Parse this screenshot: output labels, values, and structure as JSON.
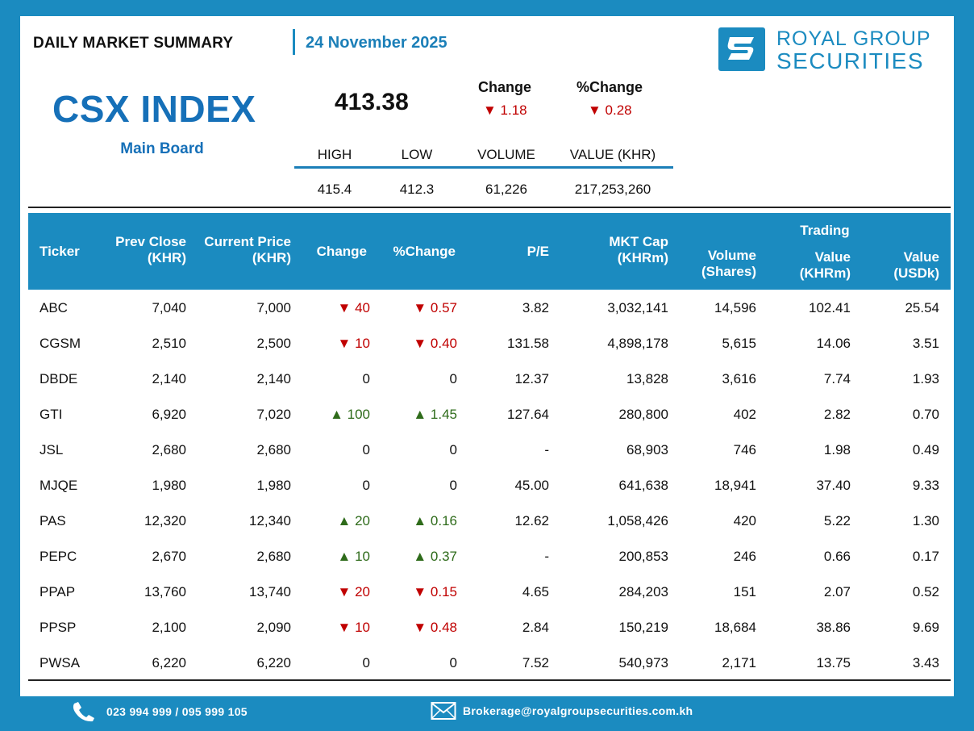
{
  "header": {
    "summary_title": "DAILY MARKET SUMMARY",
    "date": "24 November 2025",
    "logo_line1": "ROYAL GROUP",
    "logo_line2": "SECURITIES"
  },
  "index": {
    "name": "CSX INDEX",
    "board": "Main Board",
    "value": "413.38",
    "change_label": "Change",
    "change_value": "▼ 1.18",
    "pct_change_label": "%Change",
    "pct_change_value": "▼ 0.28"
  },
  "stats": {
    "labels": [
      "HIGH",
      "LOW",
      "VOLUME",
      "VALUE (KHR)"
    ],
    "values": [
      "415.4",
      "412.3",
      "61,226",
      "217,253,260"
    ]
  },
  "table": {
    "headers": {
      "ticker": "Ticker",
      "prev_close_1": "Prev Close",
      "prev_close_2": "(KHR)",
      "current_price_1": "Current Price",
      "current_price_2": "(KHR)",
      "change": "Change",
      "pct_change": "%Change",
      "pe": "P/E",
      "mkt_cap_1": "MKT Cap",
      "mkt_cap_2": "(KHRm)",
      "volume_1": "Volume",
      "volume_2": "(Shares)",
      "trading": "Trading",
      "value_khr_1": "Value",
      "value_khr_2": "(KHRm)",
      "value_usd_1": "Value",
      "value_usd_2": "(USDk)"
    },
    "rows": [
      {
        "ticker": "ABC",
        "prev": "7,040",
        "cur": "7,000",
        "chg": "▼ 40",
        "pct": "▼ 0.57",
        "dir": "down",
        "pe": "3.82",
        "cap": "3,032,141",
        "vol": "14,596",
        "vkhr": "102.41",
        "vusd": "25.54"
      },
      {
        "ticker": "CGSM",
        "prev": "2,510",
        "cur": "2,500",
        "chg": "▼ 10",
        "pct": "▼ 0.40",
        "dir": "down",
        "pe": "131.58",
        "cap": "4,898,178",
        "vol": "5,615",
        "vkhr": "14.06",
        "vusd": "3.51"
      },
      {
        "ticker": "DBDE",
        "prev": "2,140",
        "cur": "2,140",
        "chg": "0",
        "pct": "0",
        "dir": "flat",
        "pe": "12.37",
        "cap": "13,828",
        "vol": "3,616",
        "vkhr": "7.74",
        "vusd": "1.93"
      },
      {
        "ticker": "GTI",
        "prev": "6,920",
        "cur": "7,020",
        "chg": "▲ 100",
        "pct": "▲ 1.45",
        "dir": "up",
        "pe": "127.64",
        "cap": "280,800",
        "vol": "402",
        "vkhr": "2.82",
        "vusd": "0.70"
      },
      {
        "ticker": "JSL",
        "prev": "2,680",
        "cur": "2,680",
        "chg": "0",
        "pct": "0",
        "dir": "flat",
        "pe": "-",
        "cap": "68,903",
        "vol": "746",
        "vkhr": "1.98",
        "vusd": "0.49"
      },
      {
        "ticker": "MJQE",
        "prev": "1,980",
        "cur": "1,980",
        "chg": "0",
        "pct": "0",
        "dir": "flat",
        "pe": "45.00",
        "cap": "641,638",
        "vol": "18,941",
        "vkhr": "37.40",
        "vusd": "9.33"
      },
      {
        "ticker": "PAS",
        "prev": "12,320",
        "cur": "12,340",
        "chg": "▲ 20",
        "pct": "▲ 0.16",
        "dir": "up",
        "pe": "12.62",
        "cap": "1,058,426",
        "vol": "420",
        "vkhr": "5.22",
        "vusd": "1.30"
      },
      {
        "ticker": "PEPC",
        "prev": "2,670",
        "cur": "2,680",
        "chg": "▲ 10",
        "pct": "▲ 0.37",
        "dir": "up",
        "pe": "-",
        "cap": "200,853",
        "vol": "246",
        "vkhr": "0.66",
        "vusd": "0.17"
      },
      {
        "ticker": "PPAP",
        "prev": "13,760",
        "cur": "13,740",
        "chg": "▼ 20",
        "pct": "▼ 0.15",
        "dir": "down",
        "pe": "4.65",
        "cap": "284,203",
        "vol": "151",
        "vkhr": "2.07",
        "vusd": "0.52"
      },
      {
        "ticker": "PPSP",
        "prev": "2,100",
        "cur": "2,090",
        "chg": "▼ 10",
        "pct": "▼ 0.48",
        "dir": "down",
        "pe": "2.84",
        "cap": "150,219",
        "vol": "18,684",
        "vkhr": "38.86",
        "vusd": "9.69"
      },
      {
        "ticker": "PWSA",
        "prev": "6,220",
        "cur": "6,220",
        "chg": "0",
        "pct": "0",
        "dir": "flat",
        "pe": "7.52",
        "cap": "540,973",
        "vol": "2,171",
        "vkhr": "13.75",
        "vusd": "3.43"
      }
    ]
  },
  "footer": {
    "phone_icon": "phone-icon",
    "phone": "023 994 999 / 095 999 105",
    "email_icon": "envelope-icon",
    "email": "Brokerage@royalgroupsecurities.com.kh"
  },
  "colors": {
    "brand_blue": "#1b8bc0",
    "index_blue": "#1670b8",
    "down_red": "#c00000",
    "up_green": "#2e6b1a"
  }
}
